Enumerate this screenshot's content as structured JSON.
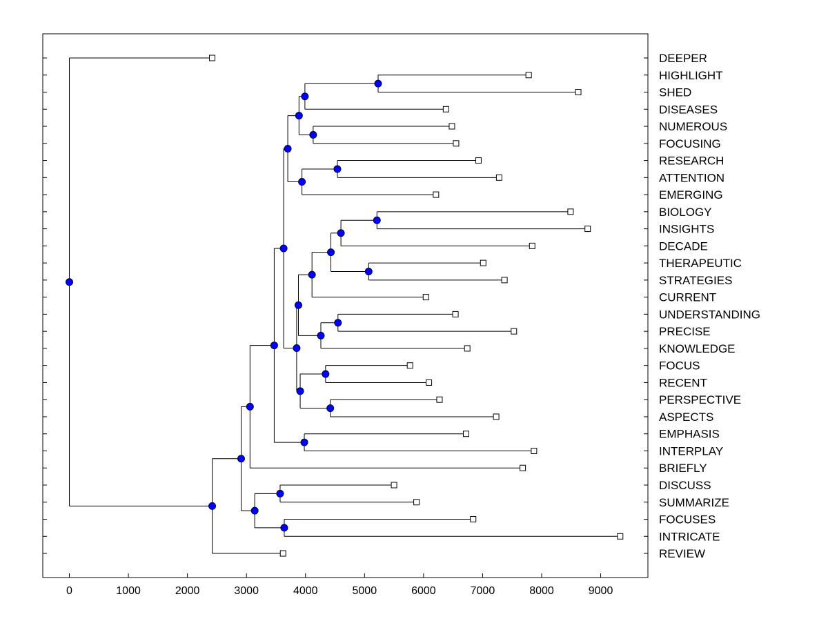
{
  "chart_data": {
    "type": "dendrogram",
    "orientation": "horizontal",
    "xlim": [
      -450,
      9800
    ],
    "x_ticks": [
      0,
      1000,
      2000,
      3000,
      4000,
      5000,
      6000,
      7000,
      8000,
      9000
    ],
    "x_tick_labels": [
      "0",
      "1000",
      "2000",
      "3000",
      "4000",
      "5000",
      "6000",
      "7000",
      "8000",
      "9000"
    ],
    "colors": {
      "node": "#0000ff",
      "line": "#000000",
      "leaf": "#ffffff"
    },
    "leaves": [
      {
        "label": "DEEPER",
        "x": 2420
      },
      {
        "label": "HIGHLIGHT",
        "x": 7780
      },
      {
        "label": "SHED",
        "x": 8620
      },
      {
        "label": "DISEASES",
        "x": 6380
      },
      {
        "label": "NUMEROUS",
        "x": 6480
      },
      {
        "label": "FOCUSING",
        "x": 6550
      },
      {
        "label": "RESEARCH",
        "x": 6930
      },
      {
        "label": "ATTENTION",
        "x": 7280
      },
      {
        "label": "EMERGING",
        "x": 6210
      },
      {
        "label": "BIOLOGY",
        "x": 8490
      },
      {
        "label": "INSIGHTS",
        "x": 8780
      },
      {
        "label": "DECADE",
        "x": 7840
      },
      {
        "label": "THERAPEUTIC",
        "x": 7010
      },
      {
        "label": "STRATEGIES",
        "x": 7370
      },
      {
        "label": "CURRENT",
        "x": 6040
      },
      {
        "label": "UNDERSTANDING",
        "x": 6540
      },
      {
        "label": "PRECISE",
        "x": 7530
      },
      {
        "label": "KNOWLEDGE",
        "x": 6740
      },
      {
        "label": "FOCUS",
        "x": 5770
      },
      {
        "label": "RECENT",
        "x": 6090
      },
      {
        "label": "PERSPECTIVE",
        "x": 6270
      },
      {
        "label": "ASPECTS",
        "x": 7230
      },
      {
        "label": "EMPHASIS",
        "x": 6720
      },
      {
        "label": "INTERPLAY",
        "x": 7870
      },
      {
        "label": "BRIEFLY",
        "x": 7680
      },
      {
        "label": "DISCUSS",
        "x": 5500
      },
      {
        "label": "SUMMARIZE",
        "x": 5880
      },
      {
        "label": "FOCUSES",
        "x": 6840
      },
      {
        "label": "INTRICATE",
        "x": 9330
      },
      {
        "label": "REVIEW",
        "x": 3620
      }
    ],
    "merges": [
      {
        "x": 5230,
        "children": [
          "L1",
          "L2"
        ]
      },
      {
        "x": 3990,
        "children": [
          "N0",
          "L3"
        ]
      },
      {
        "x": 4130,
        "children": [
          "L4",
          "L5"
        ]
      },
      {
        "x": 3890,
        "children": [
          "N1",
          "N2"
        ]
      },
      {
        "x": 4540,
        "children": [
          "L6",
          "L7"
        ]
      },
      {
        "x": 3940,
        "children": [
          "N4",
          "L8"
        ]
      },
      {
        "x": 3700,
        "children": [
          "N3",
          "N5"
        ]
      },
      {
        "x": 5210,
        "children": [
          "L9",
          "L10"
        ]
      },
      {
        "x": 4600,
        "children": [
          "N7",
          "L11"
        ]
      },
      {
        "x": 5070,
        "children": [
          "L12",
          "L13"
        ]
      },
      {
        "x": 4430,
        "children": [
          "N8",
          "N9"
        ]
      },
      {
        "x": 4110,
        "children": [
          "N10",
          "L14"
        ]
      },
      {
        "x": 4550,
        "children": [
          "L15",
          "L16"
        ]
      },
      {
        "x": 4260,
        "children": [
          "N12",
          "L17"
        ]
      },
      {
        "x": 3880,
        "children": [
          "N11",
          "N13"
        ]
      },
      {
        "x": 4340,
        "children": [
          "L18",
          "L19"
        ]
      },
      {
        "x": 4420,
        "children": [
          "L20",
          "L21"
        ]
      },
      {
        "x": 3910,
        "children": [
          "N15",
          "N16"
        ]
      },
      {
        "x": 3850,
        "children": [
          "N14",
          "N17"
        ]
      },
      {
        "x": 3630,
        "children": [
          "N6",
          "N18"
        ]
      },
      {
        "x": 3980,
        "children": [
          "L22",
          "L23"
        ]
      },
      {
        "x": 3470,
        "children": [
          "N19",
          "N20"
        ]
      },
      {
        "x": 3060,
        "children": [
          "N21",
          "L24"
        ]
      },
      {
        "x": 3570,
        "children": [
          "L25",
          "L26"
        ]
      },
      {
        "x": 3640,
        "children": [
          "L27",
          "L28"
        ]
      },
      {
        "x": 3140,
        "children": [
          "N23",
          "N24"
        ]
      },
      {
        "x": 2910,
        "children": [
          "N22",
          "N25"
        ]
      },
      {
        "x": 2420,
        "children": [
          "N26",
          "L29"
        ]
      },
      {
        "x": 0,
        "children": [
          "L0",
          "N27"
        ]
      }
    ]
  }
}
